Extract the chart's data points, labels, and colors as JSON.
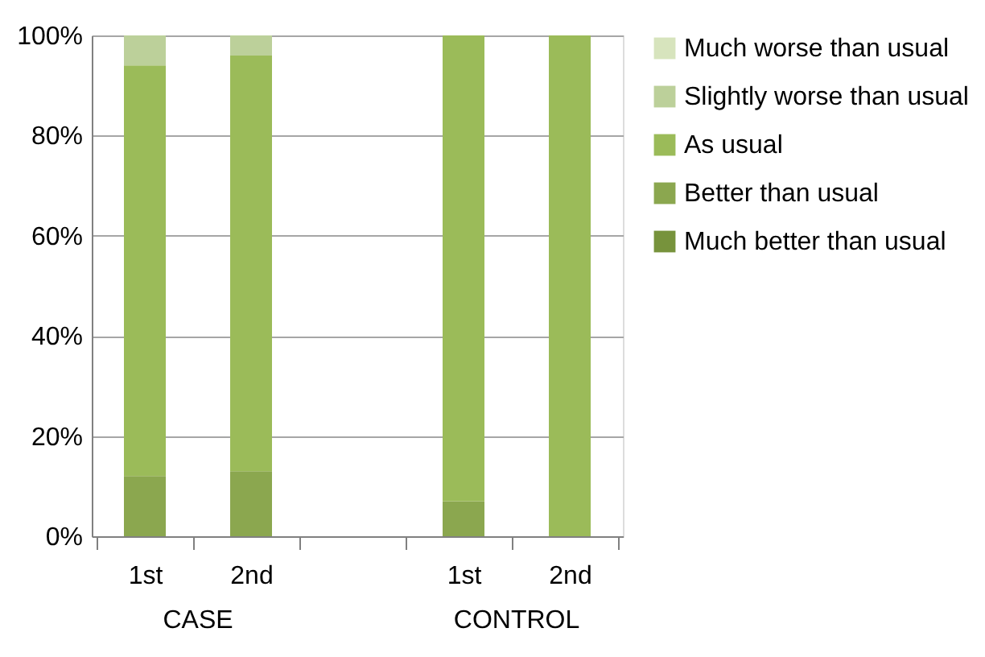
{
  "chart_data": {
    "type": "bar",
    "stacked": true,
    "categories": [
      "1st",
      "2nd",
      null,
      "1st",
      "2nd"
    ],
    "series": [
      {
        "name": "Much better than usual",
        "color": "#77933c",
        "values": [
          0,
          0,
          null,
          0,
          0
        ]
      },
      {
        "name": "Better than usual",
        "color": "#8ba74f",
        "values": [
          12,
          13,
          null,
          7,
          0
        ]
      },
      {
        "name": "As usual",
        "color": "#9bbb59",
        "values": [
          82,
          83,
          null,
          93,
          100
        ]
      },
      {
        "name": "Slightly worse than usual",
        "color": "#bcd09a",
        "values": [
          6,
          4,
          null,
          0,
          0
        ]
      },
      {
        "name": "Much worse than usual",
        "color": "#d7e4bd",
        "values": [
          0,
          0,
          null,
          0,
          0
        ]
      }
    ],
    "ylim": [
      0,
      100
    ],
    "yticks": [
      {
        "value": 0,
        "label": "0%"
      },
      {
        "value": 20,
        "label": "20%"
      },
      {
        "value": 40,
        "label": "40%"
      },
      {
        "value": 60,
        "label": "60%"
      },
      {
        "value": 80,
        "label": "80%"
      },
      {
        "value": 100,
        "label": "100%"
      }
    ],
    "grid": "y",
    "legend": "right",
    "annotations": [
      "CASE",
      "CONTROL"
    ]
  }
}
